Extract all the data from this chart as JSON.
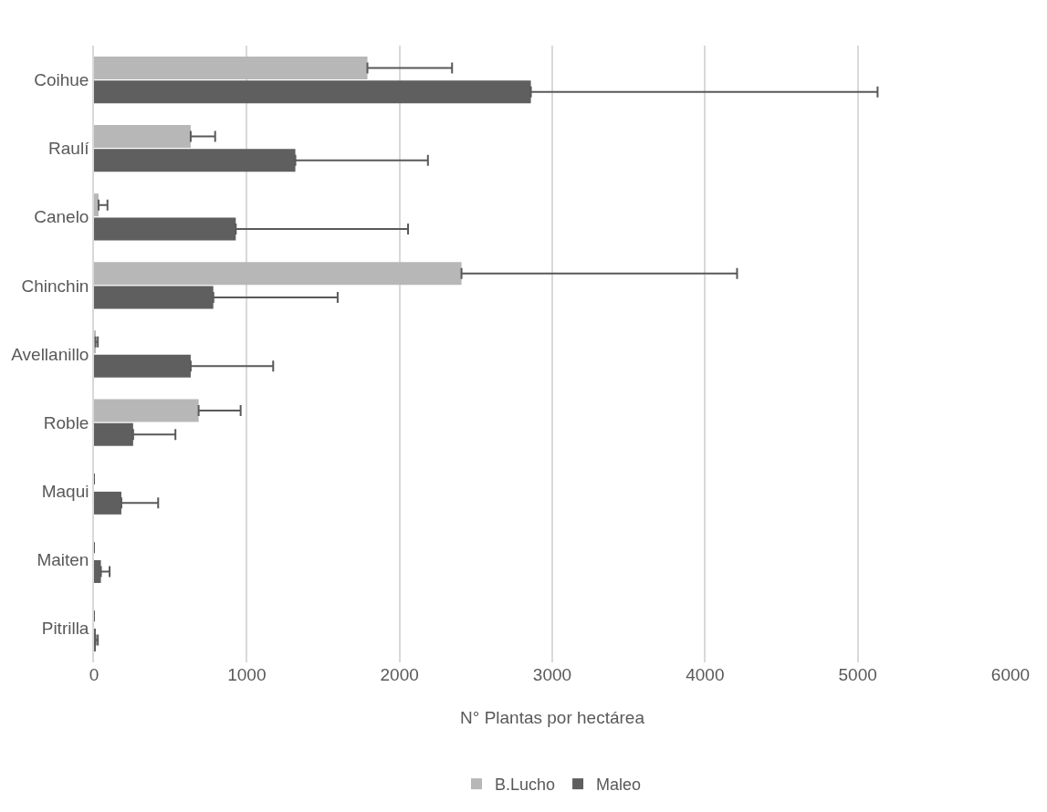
{
  "chart_data": {
    "type": "bar",
    "orientation": "horizontal",
    "xlabel": "N° Plantas por hectárea",
    "categories": [
      "Coihue",
      "Raulí",
      "Canelo",
      "Chinchin",
      "Avellanillo",
      "Roble",
      "Maqui",
      "Maiten",
      "Pitrilla"
    ],
    "series": [
      {
        "name": "B.Lucho",
        "color": "#b7b7b7",
        "values": [
          1790,
          633,
          30,
          2406,
          10,
          685,
          0,
          0,
          0
        ],
        "errors": [
          554,
          160,
          58,
          1804,
          15,
          275,
          0,
          0,
          0
        ]
      },
      {
        "name": "Maleo",
        "color": "#5f5f5f",
        "values": [
          2860,
          1318,
          928,
          781,
          633,
          256,
          179,
          45,
          10
        ],
        "errors": [
          2270,
          868,
          1128,
          814,
          540,
          277,
          241,
          57,
          15
        ]
      }
    ],
    "xlim": [
      0,
      6000
    ],
    "xticks": [
      0,
      1000,
      2000,
      3000,
      4000,
      5000,
      6000
    ],
    "grid": "x",
    "legend": "bottom"
  }
}
